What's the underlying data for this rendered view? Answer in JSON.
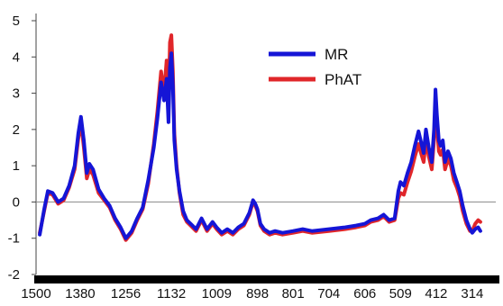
{
  "chart_data": {
    "type": "line",
    "title": "",
    "xlabel": "",
    "ylabel": "",
    "x_reversed": true,
    "xlim": [
      1500,
      250
    ],
    "ylim": [
      -2,
      5
    ],
    "grid": false,
    "legend_position": "top-right",
    "y_ticks": [
      "5",
      "4",
      "3",
      "2",
      "1",
      "0",
      "-1",
      "-2"
    ],
    "y_tick_values": [
      5,
      4,
      3,
      2,
      1,
      0,
      -1,
      -2
    ],
    "x_ticks": [
      "1500",
      "1380",
      "1256",
      "1132",
      "1009",
      "898",
      "801",
      "704",
      "606",
      "509",
      "412",
      "314"
    ],
    "x_tick_values": [
      1500,
      1380,
      1256,
      1132,
      1009,
      898,
      801,
      704,
      606,
      509,
      412,
      314
    ],
    "reference_line_y": 0,
    "x": [
      1490,
      1478,
      1468,
      1455,
      1440,
      1425,
      1410,
      1395,
      1385,
      1378,
      1370,
      1362,
      1355,
      1345,
      1330,
      1315,
      1300,
      1285,
      1270,
      1256,
      1240,
      1225,
      1210,
      1195,
      1180,
      1170,
      1160,
      1152,
      1145,
      1140,
      1136,
      1132,
      1128,
      1124,
      1118,
      1110,
      1100,
      1090,
      1080,
      1065,
      1050,
      1035,
      1020,
      1009,
      995,
      980,
      965,
      950,
      935,
      920,
      910,
      904,
      898,
      890,
      880,
      865,
      850,
      830,
      801,
      775,
      750,
      704,
      660,
      630,
      606,
      590,
      570,
      555,
      540,
      525,
      515,
      509,
      500,
      490,
      480,
      470,
      460,
      452,
      446,
      440,
      432,
      424,
      418,
      414,
      410,
      405,
      400,
      394,
      388,
      380,
      372,
      364,
      356,
      348,
      340,
      330,
      320,
      314,
      306,
      298,
      292
    ],
    "series": [
      {
        "name": "MR",
        "color": "#1515d6",
        "values": [
          -0.9,
          -0.2,
          0.3,
          0.25,
          0.0,
          0.1,
          0.45,
          1.0,
          1.9,
          2.35,
          1.7,
          0.8,
          1.05,
          0.9,
          0.35,
          0.1,
          -0.1,
          -0.45,
          -0.7,
          -1.0,
          -0.8,
          -0.45,
          -0.15,
          0.6,
          1.5,
          2.3,
          3.3,
          2.8,
          3.4,
          2.2,
          3.7,
          4.1,
          3.2,
          1.7,
          0.9,
          0.3,
          -0.25,
          -0.5,
          -0.6,
          -0.75,
          -0.45,
          -0.75,
          -0.55,
          -0.7,
          -0.85,
          -0.75,
          -0.85,
          -0.7,
          -0.6,
          -0.3,
          0.05,
          -0.05,
          -0.2,
          -0.6,
          -0.75,
          -0.85,
          -0.8,
          -0.85,
          -0.8,
          -0.75,
          -0.8,
          -0.75,
          -0.7,
          -0.65,
          -0.6,
          -0.5,
          -0.45,
          -0.35,
          -0.5,
          -0.45,
          0.3,
          0.55,
          0.45,
          0.8,
          1.1,
          1.55,
          1.95,
          1.6,
          1.35,
          2.0,
          1.5,
          1.1,
          2.0,
          3.1,
          2.4,
          1.7,
          1.55,
          1.7,
          1.1,
          1.4,
          1.2,
          0.8,
          0.55,
          0.3,
          -0.1,
          -0.5,
          -0.75,
          -0.85,
          -0.75,
          -0.7,
          -0.8
        ]
      },
      {
        "name": "PhAT",
        "color": "#e0262a",
        "values": [
          -0.85,
          -0.25,
          0.25,
          0.2,
          -0.05,
          0.05,
          0.4,
          0.9,
          1.75,
          2.2,
          1.5,
          0.65,
          0.9,
          0.75,
          0.25,
          0.05,
          -0.15,
          -0.5,
          -0.75,
          -1.05,
          -0.85,
          -0.5,
          -0.2,
          0.5,
          1.6,
          2.5,
          3.6,
          3.0,
          3.9,
          2.6,
          4.4,
          4.6,
          3.6,
          1.9,
          1.0,
          0.25,
          -0.35,
          -0.55,
          -0.65,
          -0.8,
          -0.5,
          -0.8,
          -0.6,
          -0.75,
          -0.9,
          -0.8,
          -0.9,
          -0.75,
          -0.65,
          -0.35,
          0.0,
          -0.1,
          -0.25,
          -0.65,
          -0.8,
          -0.9,
          -0.85,
          -0.9,
          -0.85,
          -0.8,
          -0.85,
          -0.8,
          -0.75,
          -0.7,
          -0.65,
          -0.55,
          -0.5,
          -0.4,
          -0.55,
          -0.5,
          0.1,
          0.25,
          0.2,
          0.55,
          0.85,
          1.25,
          1.6,
          1.3,
          1.1,
          1.7,
          1.25,
          0.9,
          1.7,
          2.7,
          2.1,
          1.4,
          1.3,
          1.45,
          0.9,
          1.2,
          1.0,
          0.6,
          0.4,
          0.15,
          -0.25,
          -0.6,
          -0.8,
          -0.8,
          -0.6,
          -0.5,
          -0.55
        ]
      }
    ]
  }
}
